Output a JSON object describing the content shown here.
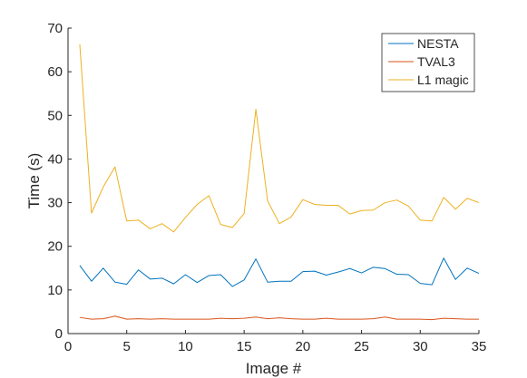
{
  "chart_data": {
    "type": "line",
    "xlabel": "Image #",
    "ylabel": "Time (s)",
    "xlim": [
      0,
      35
    ],
    "ylim": [
      0,
      70
    ],
    "xticks": [
      0,
      5,
      10,
      15,
      20,
      25,
      30,
      35
    ],
    "yticks": [
      0,
      10,
      20,
      30,
      40,
      50,
      60,
      70
    ],
    "grid": false,
    "legend_position": "top-right",
    "x": [
      1,
      2,
      3,
      4,
      5,
      6,
      7,
      8,
      9,
      10,
      11,
      12,
      13,
      14,
      15,
      16,
      17,
      18,
      19,
      20,
      21,
      22,
      23,
      24,
      25,
      26,
      27,
      28,
      29,
      30,
      31,
      32,
      33,
      34,
      35
    ],
    "series": [
      {
        "name": "NESTA",
        "color": "#0072BD",
        "values": [
          15.6,
          12.0,
          15.0,
          11.8,
          11.3,
          14.6,
          12.5,
          12.7,
          11.4,
          13.5,
          11.7,
          13.3,
          13.5,
          10.8,
          12.3,
          17.1,
          11.8,
          12.0,
          12.0,
          14.2,
          14.3,
          13.4,
          14.1,
          14.9,
          13.9,
          15.2,
          14.9,
          13.6,
          13.5,
          11.5,
          11.2,
          17.3,
          12.4,
          15.0,
          13.8
        ]
      },
      {
        "name": "TVAL3",
        "color": "#D95319",
        "values": [
          3.7,
          3.3,
          3.4,
          4.0,
          3.3,
          3.4,
          3.3,
          3.4,
          3.3,
          3.3,
          3.3,
          3.3,
          3.5,
          3.4,
          3.5,
          3.8,
          3.4,
          3.6,
          3.4,
          3.3,
          3.3,
          3.5,
          3.3,
          3.3,
          3.3,
          3.4,
          3.8,
          3.3,
          3.3,
          3.3,
          3.2,
          3.5,
          3.4,
          3.3,
          3.3
        ]
      },
      {
        "name": "L1 magic",
        "color": "#EDB120",
        "values": [
          66.3,
          27.6,
          33.6,
          38.2,
          25.8,
          26.0,
          24.0,
          25.2,
          23.3,
          26.6,
          29.6,
          31.6,
          25.0,
          24.3,
          27.5,
          51.4,
          30.4,
          25.2,
          26.7,
          30.7,
          29.6,
          29.4,
          29.4,
          27.4,
          28.2,
          28.3,
          30.0,
          30.6,
          29.2,
          26.0,
          25.8,
          31.2,
          28.5,
          31.0,
          30.0
        ]
      }
    ]
  }
}
